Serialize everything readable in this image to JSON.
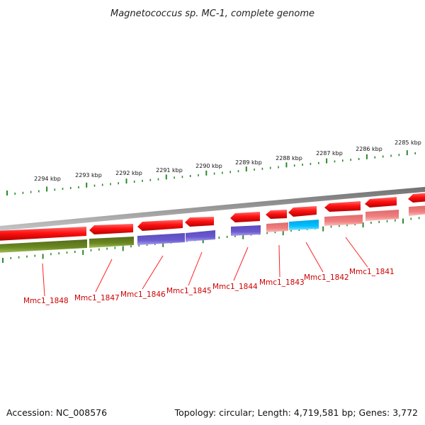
{
  "title": "Magnetococcus sp. MC-1, complete genome",
  "footer": {
    "accession": "Accession: NC_008576",
    "summary": "Topology: circular; Length: 4,719,581 bp; Genes: 3,772"
  },
  "colors": {
    "backbone": "#8a8a8a",
    "cds": "#ff1111",
    "tick": "#2a8a2a",
    "label": "#cc0000",
    "gene_olive": "#6b8a22",
    "gene_purple": "#6a5acd",
    "gene_pink": "#f08080",
    "gene_cyan": "#00bfff"
  },
  "scale": {
    "labels": [
      "2294 kbp",
      "2293 kbp",
      "2292 kbp",
      "2291 kbp",
      "2290 kbp",
      "2289 kbp",
      "2288 kbp",
      "2287 kbp",
      "2286 kbp",
      "2285 kbp"
    ]
  },
  "genes": [
    {
      "label": "Mmc1_1848"
    },
    {
      "label": "Mmc1_1847"
    },
    {
      "label": "Mmc1_1846"
    },
    {
      "label": "Mmc1_1845"
    },
    {
      "label": "Mmc1_1844"
    },
    {
      "label": "Mmc1_1843"
    },
    {
      "label": "Mmc1_1842"
    },
    {
      "label": "Mmc1_1841"
    }
  ]
}
